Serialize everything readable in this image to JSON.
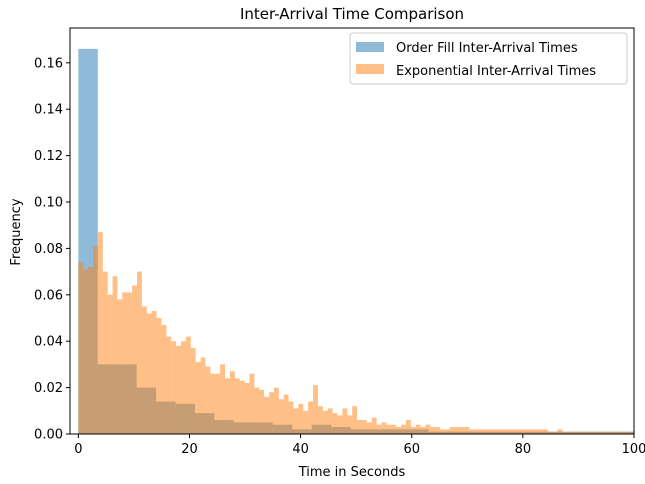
{
  "chart_data": {
    "type": "histogram",
    "title": "Inter-Arrival Time Comparison",
    "xlabel": "Time in Seconds",
    "ylabel": "Frequency",
    "xlim": [
      -1.5,
      100
    ],
    "ylim": [
      0,
      0.175
    ],
    "xticks": [
      0,
      20,
      40,
      60,
      80,
      100
    ],
    "yticks": [
      0.0,
      0.02,
      0.04,
      0.06,
      0.08,
      0.1,
      0.12,
      0.14,
      0.16
    ],
    "ytick_labels": [
      "0.00",
      "0.02",
      "0.04",
      "0.06",
      "0.08",
      "0.10",
      "0.12",
      "0.14",
      "0.16"
    ],
    "legend_position": "upper right",
    "series": [
      {
        "name": "Order Fill Inter-Arrival Times",
        "color": "#1f77b4",
        "alpha": 0.5,
        "bin_edges": [
          0,
          3.5,
          7,
          10.5,
          14,
          17.5,
          21,
          24.5,
          28,
          31.5,
          35,
          38.5,
          42,
          45.5,
          49,
          52.5,
          56,
          59.5,
          63,
          66.5,
          70,
          73.5,
          77,
          80.5,
          84,
          87.5,
          91,
          94.5,
          98,
          101.5
        ],
        "values": [
          0.166,
          0.03,
          0.03,
          0.02,
          0.014,
          0.013,
          0.009,
          0.006,
          0.005,
          0.005,
          0.004,
          0.002,
          0.004,
          0.003,
          0.002,
          0.002,
          0.002,
          0.002,
          0.001,
          0.001,
          0.001,
          0.001,
          0.001,
          0.001,
          0.001,
          0.001,
          0.001,
          0.001,
          0.001
        ]
      },
      {
        "name": "Exponential Inter-Arrival Times",
        "color": "#ff7f0e",
        "alpha": 0.5,
        "bin_start": 0,
        "bin_width": 0.88,
        "values": [
          0.074,
          0.071,
          0.072,
          0.081,
          0.087,
          0.07,
          0.06,
          0.068,
          0.058,
          0.061,
          0.061,
          0.064,
          0.07,
          0.055,
          0.052,
          0.053,
          0.05,
          0.047,
          0.042,
          0.04,
          0.038,
          0.04,
          0.042,
          0.037,
          0.031,
          0.033,
          0.029,
          0.026,
          0.026,
          0.03,
          0.024,
          0.027,
          0.024,
          0.023,
          0.022,
          0.026,
          0.02,
          0.019,
          0.016,
          0.018,
          0.02,
          0.015,
          0.017,
          0.014,
          0.011,
          0.013,
          0.01,
          0.014,
          0.021,
          0.012,
          0.01,
          0.011,
          0.009,
          0.008,
          0.011,
          0.008,
          0.012,
          0.006,
          0.006,
          0.005,
          0.007,
          0.004,
          0.005,
          0.004,
          0.004,
          0.003,
          0.004,
          0.006,
          0.003,
          0.004,
          0.003,
          0.004,
          0.003,
          0.003,
          0.002,
          0.002,
          0.003,
          0.003,
          0.003,
          0.003,
          0.002,
          0.002,
          0.002,
          0.002,
          0.002,
          0.002,
          0.002,
          0.002,
          0.002,
          0.002,
          0.002,
          0.002,
          0.002,
          0.002,
          0.002,
          0.002,
          0.001,
          0.001,
          0.002,
          0.001,
          0.001,
          0.001,
          0.001,
          0.001,
          0.001,
          0.001,
          0.001,
          0.001,
          0.001,
          0.001,
          0.001,
          0.001,
          0.001,
          0.001,
          0.001
        ]
      }
    ]
  }
}
